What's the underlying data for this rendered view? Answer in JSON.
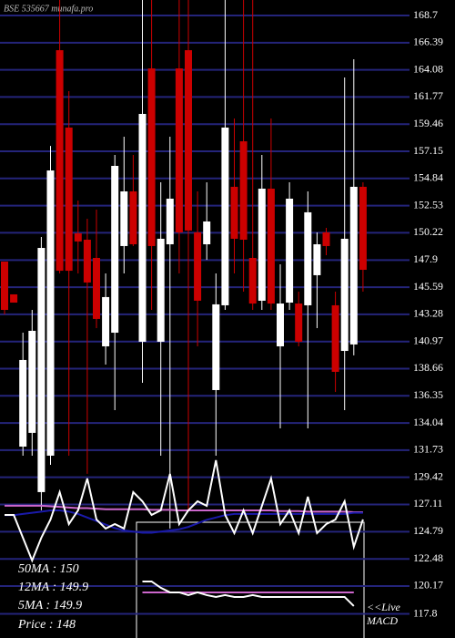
{
  "chart_data": {
    "type": "candlestick",
    "title": "BSE 535667 munafa.pro",
    "up_color": "#ffffff",
    "down_color": "#cc0000",
    "grid": true,
    "grid_color": "#24247a",
    "ylim": [
      115.75,
      170.02
    ],
    "yticks": [
      168.7,
      166.39,
      164.08,
      161.77,
      159.46,
      157.15,
      154.84,
      152.53,
      150.22,
      147.9,
      145.59,
      143.28,
      140.97,
      138.66,
      136.35,
      134.04,
      131.73,
      129.42,
      127.11,
      124.79,
      122.48,
      120.17,
      117.8
    ],
    "open": [
      147.77,
      144.98,
      132.03,
      133.2,
      128.16,
      131.26,
      165.75,
      159.17,
      150.17,
      149.63,
      148.08,
      140.56,
      141.72,
      149.09,
      153.74,
      140.95,
      164.2,
      140.95,
      149.24,
      164.2,
      165.75,
      150.25,
      149.24,
      136.84,
      144.05,
      154.13,
      158.0,
      148.08,
      144.44,
      153.97,
      140.56,
      144.28,
      144.2,
      144.05,
      146.61,
      150.25,
      144.05,
      140.17,
      140.72,
      154.13
    ],
    "high": [
      147.77,
      144.98,
      141.72,
      143.66,
      149.86,
      157.61,
      170.02,
      162.27,
      152.96,
      151.41,
      152.19,
      146.76,
      156.84,
      158.39,
      156.84,
      170.02,
      170.02,
      154.51,
      158.39,
      170.02,
      170.02,
      153.74,
      154.51,
      146.76,
      170.02,
      159.94,
      170.02,
      170.02,
      156.84,
      159.94,
      147.54,
      154.51,
      145.21,
      153.74,
      150.25,
      150.64,
      145.21,
      163.43,
      164.98,
      154.51
    ],
    "low": [
      143.27,
      144.28,
      131.26,
      131.26,
      126.61,
      130.48,
      146.76,
      131.26,
      146.76,
      129.71,
      142.11,
      139.01,
      135.13,
      146.76,
      149.09,
      137.46,
      143.66,
      131.26,
      125.06,
      146.76,
      126.61,
      140.56,
      147.92,
      131.26,
      143.66,
      146.76,
      145.21,
      143.66,
      143.66,
      143.66,
      133.58,
      143.66,
      140.56,
      133.58,
      142.11,
      148.31,
      136.68,
      135.13,
      139.79,
      145.21
    ],
    "close": [
      143.66,
      144.28,
      139.4,
      141.88,
      148.93,
      155.52,
      146.99,
      146.99,
      149.48,
      145.99,
      142.89,
      144.75,
      155.91,
      153.74,
      149.24,
      160.33,
      149.09,
      149.71,
      153.12,
      150.25,
      150.41,
      144.44,
      151.18,
      144.13,
      159.17,
      149.71,
      149.63,
      144.2,
      153.97,
      144.2,
      144.2,
      153.12,
      140.95,
      151.96,
      149.24,
      149.09,
      138.39,
      149.71,
      154.13,
      147.07
    ],
    "lines": [
      {
        "color": "#cc66cc",
        "values": [
          127.0,
          127.0,
          127.0,
          127.0,
          127.0,
          126.95,
          126.9,
          126.85,
          126.8,
          126.8,
          126.75,
          126.7,
          126.7,
          126.7,
          126.7,
          126.7,
          126.65,
          126.65,
          126.65,
          126.6,
          126.6,
          126.6,
          126.6,
          126.6,
          126.6,
          126.6,
          126.6,
          126.6,
          126.6,
          126.6,
          126.55,
          126.55,
          126.55,
          126.5,
          126.5,
          126.5,
          126.5,
          126.5,
          126.45,
          126.45
        ]
      },
      {
        "color": "#1a1aaa",
        "values": [
          126.2,
          126.2,
          126.3,
          126.4,
          126.5,
          126.6,
          126.6,
          126.5,
          126.3,
          126.0,
          125.7,
          125.4,
          125.1,
          124.9,
          124.8,
          124.7,
          124.7,
          124.8,
          124.9,
          125.0,
          125.2,
          125.5,
          125.8,
          126.0,
          126.2,
          126.3,
          126.3,
          126.3,
          126.3,
          126.3,
          126.3,
          126.3,
          126.3,
          126.3,
          126.3,
          126.3,
          126.3,
          126.3,
          126.4,
          126.4
        ]
      },
      {
        "color": "#ffffff",
        "values": [
          126.22,
          126.22,
          124.28,
          122.34,
          124.28,
          125.83,
          128.16,
          125.44,
          126.61,
          129.32,
          125.83,
          125.06,
          125.44,
          125.06,
          128.16,
          127.38,
          126.22,
          126.61,
          129.71,
          125.44,
          126.61,
          127.38,
          126.99,
          130.87,
          126.22,
          124.67,
          126.61,
          124.67,
          126.99,
          129.32,
          125.44,
          126.61,
          124.67,
          127.77,
          124.67,
          125.44,
          125.83,
          127.38,
          123.51,
          125.83
        ]
      },
      {
        "color": "#cc66cc",
        "values": [
          null,
          null,
          null,
          null,
          null,
          null,
          null,
          null,
          null,
          null,
          null,
          null,
          null,
          null,
          null,
          119.63,
          119.63,
          119.63,
          119.63,
          119.63,
          119.63,
          119.63,
          119.63,
          119.63,
          119.63,
          119.63,
          119.63,
          119.63,
          119.63,
          119.63,
          119.63,
          119.63,
          119.63,
          119.63,
          119.63,
          119.63,
          119.63,
          119.63,
          119.63,
          null
        ]
      },
      {
        "color": "#ffffff",
        "values": [
          null,
          null,
          null,
          null,
          null,
          null,
          null,
          null,
          null,
          null,
          null,
          null,
          null,
          null,
          null,
          120.56,
          120.56,
          120.02,
          119.63,
          119.63,
          119.4,
          119.63,
          119.4,
          119.24,
          119.4,
          119.24,
          119.24,
          119.4,
          119.24,
          119.24,
          119.24,
          119.24,
          119.24,
          119.24,
          119.24,
          119.24,
          119.24,
          119.24,
          118.47,
          null
        ]
      }
    ],
    "legend": [
      "50MA : 150",
      "12MA : 149.9",
      "5MA : 149.9",
      "Price   : 148"
    ],
    "macd_label": [
      "<<Live",
      "MACD"
    ]
  }
}
